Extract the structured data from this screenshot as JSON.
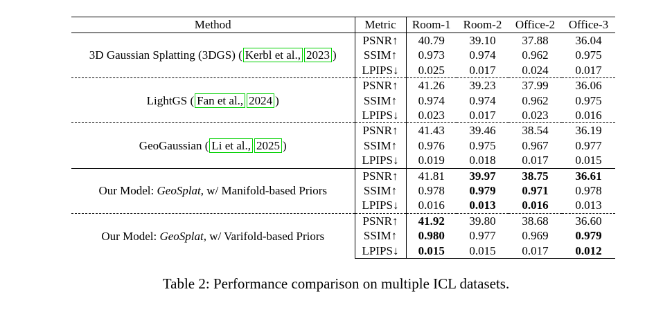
{
  "table": {
    "headers": [
      "Method",
      "Metric",
      "Room-1",
      "Room-2",
      "Office-2",
      "Office-3"
    ],
    "groups": [
      {
        "method": {
          "prefix": "3D Gaussian Splatting (3DGS) (",
          "cite1": "Kerbl et al.,",
          "cite2": "2023",
          "suffix": ")"
        },
        "rows": [
          {
            "metric": "PSNR↑",
            "values": [
              "40.79",
              "39.10",
              "37.88",
              "36.04"
            ]
          },
          {
            "metric": "SSIM↑",
            "values": [
              "0.973",
              "0.974",
              "0.962",
              "0.975"
            ]
          },
          {
            "metric": "LPIPS↓",
            "values": [
              "0.025",
              "0.017",
              "0.024",
              "0.017"
            ]
          }
        ]
      },
      {
        "method": {
          "prefix": "LightGS (",
          "cite1": "Fan et al.,",
          "cite2": "2024",
          "suffix": ")"
        },
        "rows": [
          {
            "metric": "PSNR↑",
            "values": [
              "41.26",
              "39.23",
              "37.99",
              "36.06"
            ]
          },
          {
            "metric": "SSIM↑",
            "values": [
              "0.974",
              "0.974",
              "0.962",
              "0.975"
            ]
          },
          {
            "metric": "LPIPS↓",
            "values": [
              "0.023",
              "0.017",
              "0.023",
              "0.016"
            ]
          }
        ]
      },
      {
        "method": {
          "prefix": "GeoGaussian (",
          "cite1": "Li et al.,",
          "cite2": "2025",
          "suffix": ")"
        },
        "rows": [
          {
            "metric": "PSNR↑",
            "values": [
              "41.43",
              "39.46",
              "38.54",
              "36.19"
            ]
          },
          {
            "metric": "SSIM↑",
            "values": [
              "0.976",
              "0.975",
              "0.967",
              "0.977"
            ]
          },
          {
            "metric": "LPIPS↓",
            "values": [
              "0.019",
              "0.018",
              "0.017",
              "0.015"
            ]
          }
        ]
      },
      {
        "method": {
          "prefix": "Our Model: ",
          "italic": "GeoSplat",
          "suffix": ", w/ Manifold-based Priors"
        },
        "rows": [
          {
            "metric": "PSNR↑",
            "values": [
              "41.81",
              "39.97",
              "38.75",
              "36.61"
            ],
            "bold": [
              false,
              true,
              true,
              true
            ]
          },
          {
            "metric": "SSIM↑",
            "values": [
              "0.978",
              "0.979",
              "0.971",
              "0.978"
            ],
            "bold": [
              false,
              true,
              true,
              false
            ]
          },
          {
            "metric": "LPIPS↓",
            "values": [
              "0.016",
              "0.013",
              "0.016",
              "0.013"
            ],
            "bold": [
              false,
              true,
              true,
              false
            ]
          }
        ]
      },
      {
        "method": {
          "prefix": "Our Model: ",
          "italic": "GeoSplat",
          "suffix": ", w/ Varifold-based Priors"
        },
        "rows": [
          {
            "metric": "PSNR↑",
            "values": [
              "41.92",
              "39.80",
              "38.68",
              "36.60"
            ],
            "bold": [
              true,
              false,
              false,
              false
            ]
          },
          {
            "metric": "SSIM↑",
            "values": [
              "0.980",
              "0.977",
              "0.969",
              "0.979"
            ],
            "bold": [
              true,
              false,
              false,
              true
            ]
          },
          {
            "metric": "LPIPS↓",
            "values": [
              "0.015",
              "0.015",
              "0.017",
              "0.012"
            ],
            "bold": [
              true,
              false,
              false,
              true
            ]
          }
        ]
      }
    ]
  },
  "caption": "Table 2: Performance comparison on multiple ICL datasets."
}
